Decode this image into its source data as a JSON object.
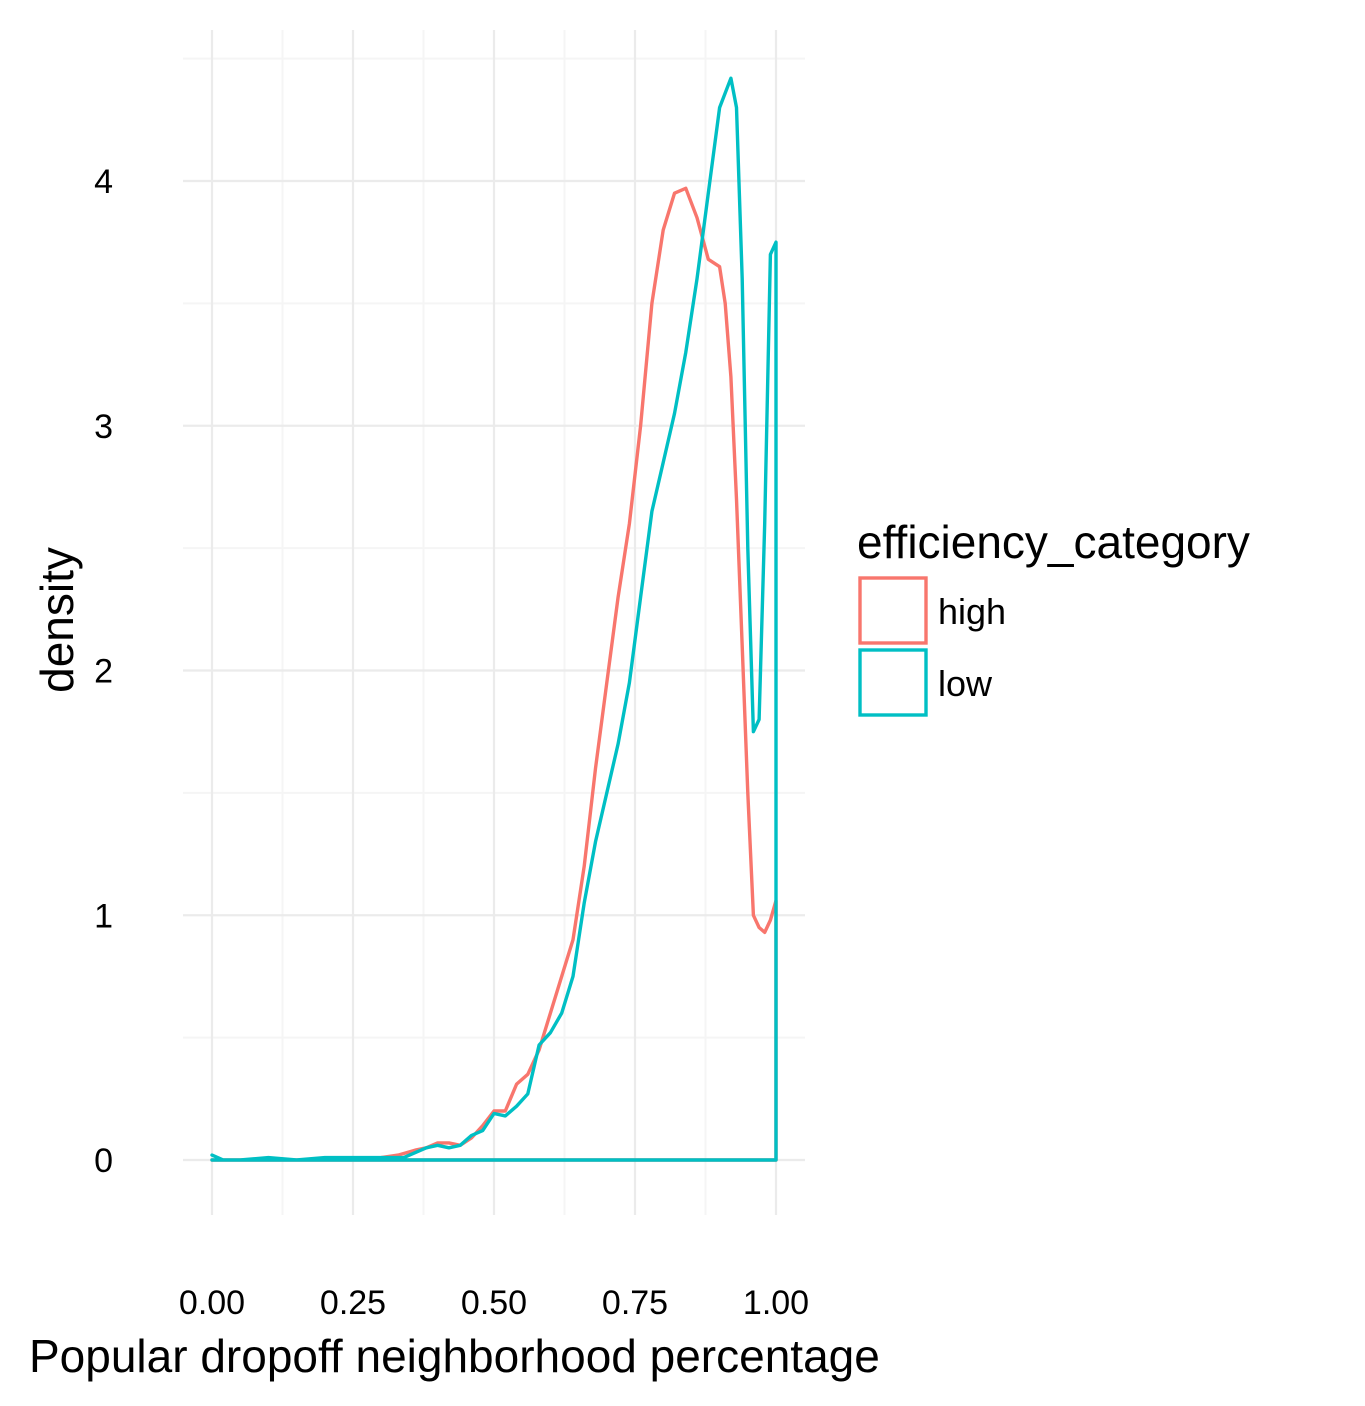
{
  "chart_data": {
    "type": "line",
    "title": "",
    "xlabel": "Popular dropoff neighborhood percentage",
    "ylabel": "density",
    "xlim": [
      -0.05,
      1.05
    ],
    "ylim": [
      -0.2,
      4.5
    ],
    "x_ticks": [
      0,
      0.25,
      0.5,
      0.75,
      1
    ],
    "x_tick_labels": [
      "0.00",
      "0.25",
      "0.50",
      "0.75",
      "1.00"
    ],
    "y_ticks": [
      0,
      1,
      2,
      3,
      4
    ],
    "y_tick_labels": [
      "0",
      "1",
      "2",
      "3",
      "4"
    ],
    "grid": true,
    "legend": {
      "title": "efficiency_category",
      "placement": "right",
      "entries": [
        "high",
        "low"
      ]
    },
    "series": [
      {
        "name": "high",
        "color": "#F8766D",
        "points": [
          [
            0.0,
            0.0
          ],
          [
            0.05,
            0.0
          ],
          [
            0.1,
            0.0
          ],
          [
            0.15,
            0.0
          ],
          [
            0.2,
            0.0
          ],
          [
            0.25,
            0.0
          ],
          [
            0.3,
            0.01
          ],
          [
            0.33,
            0.02
          ],
          [
            0.36,
            0.04
          ],
          [
            0.38,
            0.05
          ],
          [
            0.4,
            0.07
          ],
          [
            0.42,
            0.07
          ],
          [
            0.44,
            0.06
          ],
          [
            0.46,
            0.09
          ],
          [
            0.48,
            0.14
          ],
          [
            0.5,
            0.2
          ],
          [
            0.52,
            0.2
          ],
          [
            0.54,
            0.31
          ],
          [
            0.56,
            0.35
          ],
          [
            0.58,
            0.45
          ],
          [
            0.6,
            0.6
          ],
          [
            0.62,
            0.75
          ],
          [
            0.64,
            0.9
          ],
          [
            0.66,
            1.2
          ],
          [
            0.68,
            1.6
          ],
          [
            0.7,
            1.95
          ],
          [
            0.72,
            2.3
          ],
          [
            0.74,
            2.6
          ],
          [
            0.76,
            3.0
          ],
          [
            0.78,
            3.5
          ],
          [
            0.8,
            3.8
          ],
          [
            0.82,
            3.95
          ],
          [
            0.84,
            3.97
          ],
          [
            0.86,
            3.85
          ],
          [
            0.88,
            3.68
          ],
          [
            0.9,
            3.65
          ],
          [
            0.91,
            3.5
          ],
          [
            0.92,
            3.2
          ],
          [
            0.93,
            2.7
          ],
          [
            0.94,
            2.1
          ],
          [
            0.95,
            1.5
          ],
          [
            0.96,
            1.0
          ],
          [
            0.97,
            0.95
          ],
          [
            0.98,
            0.93
          ],
          [
            0.99,
            0.98
          ],
          [
            1.0,
            1.06
          ],
          [
            1.0,
            0.0
          ],
          [
            0.0,
            0.0
          ]
        ]
      },
      {
        "name": "low",
        "color": "#00BFC4",
        "points": [
          [
            0.0,
            0.02
          ],
          [
            0.02,
            0.0
          ],
          [
            0.05,
            0.0
          ],
          [
            0.1,
            0.01
          ],
          [
            0.15,
            0.0
          ],
          [
            0.2,
            0.01
          ],
          [
            0.25,
            0.01
          ],
          [
            0.3,
            0.01
          ],
          [
            0.34,
            0.01
          ],
          [
            0.36,
            0.03
          ],
          [
            0.38,
            0.05
          ],
          [
            0.4,
            0.06
          ],
          [
            0.42,
            0.05
          ],
          [
            0.44,
            0.06
          ],
          [
            0.46,
            0.1
          ],
          [
            0.48,
            0.12
          ],
          [
            0.5,
            0.19
          ],
          [
            0.52,
            0.18
          ],
          [
            0.54,
            0.22
          ],
          [
            0.56,
            0.27
          ],
          [
            0.58,
            0.47
          ],
          [
            0.6,
            0.52
          ],
          [
            0.62,
            0.6
          ],
          [
            0.64,
            0.75
          ],
          [
            0.66,
            1.05
          ],
          [
            0.68,
            1.3
          ],
          [
            0.7,
            1.5
          ],
          [
            0.72,
            1.7
          ],
          [
            0.74,
            1.95
          ],
          [
            0.76,
            2.3
          ],
          [
            0.78,
            2.65
          ],
          [
            0.8,
            2.85
          ],
          [
            0.82,
            3.05
          ],
          [
            0.84,
            3.3
          ],
          [
            0.86,
            3.6
          ],
          [
            0.88,
            3.95
          ],
          [
            0.9,
            4.3
          ],
          [
            0.92,
            4.42
          ],
          [
            0.93,
            4.3
          ],
          [
            0.94,
            3.6
          ],
          [
            0.95,
            2.5
          ],
          [
            0.96,
            1.75
          ],
          [
            0.97,
            1.8
          ],
          [
            0.98,
            2.6
          ],
          [
            0.99,
            3.7
          ],
          [
            1.0,
            3.75
          ],
          [
            1.0,
            0.0
          ],
          [
            0.0,
            0.0
          ]
        ]
      }
    ]
  }
}
